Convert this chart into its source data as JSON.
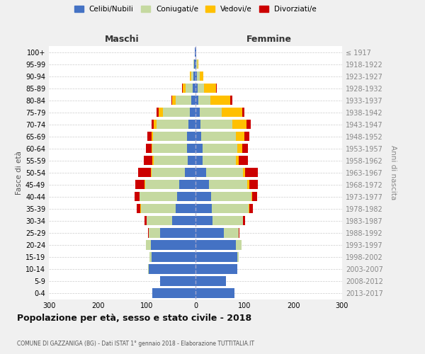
{
  "age_groups": [
    "0-4",
    "5-9",
    "10-14",
    "15-19",
    "20-24",
    "25-29",
    "30-34",
    "35-39",
    "40-44",
    "45-49",
    "50-54",
    "55-59",
    "60-64",
    "65-69",
    "70-74",
    "75-79",
    "80-84",
    "85-89",
    "90-94",
    "95-99",
    "100+"
  ],
  "birth_years": [
    "2013-2017",
    "2008-2012",
    "2003-2007",
    "1998-2002",
    "1993-1997",
    "1988-1992",
    "1983-1987",
    "1978-1982",
    "1973-1977",
    "1968-1972",
    "1963-1967",
    "1958-1962",
    "1953-1957",
    "1948-1952",
    "1943-1947",
    "1938-1942",
    "1933-1937",
    "1928-1932",
    "1923-1927",
    "1918-1922",
    "≤ 1917"
  ],
  "maschi": {
    "celibi": [
      88,
      72,
      96,
      90,
      92,
      73,
      48,
      40,
      38,
      33,
      22,
      16,
      18,
      17,
      15,
      12,
      8,
      6,
      4,
      3,
      2
    ],
    "coniugati": [
      0,
      0,
      1,
      4,
      10,
      22,
      52,
      72,
      76,
      70,
      68,
      70,
      70,
      70,
      65,
      55,
      32,
      15,
      5,
      2,
      0
    ],
    "vedovi": [
      0,
      0,
      0,
      0,
      0,
      0,
      0,
      1,
      1,
      2,
      2,
      2,
      2,
      3,
      5,
      8,
      8,
      5,
      2,
      0,
      0
    ],
    "divorziati": [
      0,
      0,
      0,
      0,
      0,
      2,
      5,
      8,
      10,
      18,
      25,
      18,
      12,
      8,
      5,
      5,
      2,
      2,
      0,
      0,
      0
    ]
  },
  "femmine": {
    "nubili": [
      80,
      62,
      85,
      85,
      82,
      58,
      35,
      33,
      32,
      28,
      22,
      15,
      15,
      12,
      10,
      8,
      6,
      5,
      3,
      2,
      1
    ],
    "coniugate": [
      0,
      0,
      1,
      4,
      12,
      30,
      62,
      76,
      82,
      78,
      75,
      68,
      70,
      70,
      65,
      45,
      25,
      12,
      5,
      2,
      0
    ],
    "vedove": [
      0,
      0,
      0,
      0,
      0,
      0,
      0,
      1,
      2,
      4,
      5,
      6,
      10,
      18,
      30,
      42,
      40,
      25,
      8,
      2,
      0
    ],
    "divorziate": [
      0,
      0,
      0,
      0,
      0,
      2,
      5,
      8,
      10,
      18,
      25,
      18,
      12,
      10,
      8,
      5,
      5,
      2,
      0,
      0,
      0
    ]
  },
  "color_celibi": "#4472c4",
  "color_coniugati": "#c5d9a0",
  "color_vedovi": "#ffc000",
  "color_divorziati": "#cc0000",
  "xlim": 300,
  "title": "Popolazione per età, sesso e stato civile - 2018",
  "subtitle": "COMUNE DI GAZZANIGA (BG) - Dati ISTAT 1° gennaio 2018 - Elaborazione TUTTITALIA.IT",
  "ylabel": "Fasce di età",
  "y2label": "Anni di nascita",
  "xlabel_left": "Maschi",
  "xlabel_right": "Femmine",
  "bg_color": "#f0f0f0",
  "plot_bg_color": "#ffffff"
}
